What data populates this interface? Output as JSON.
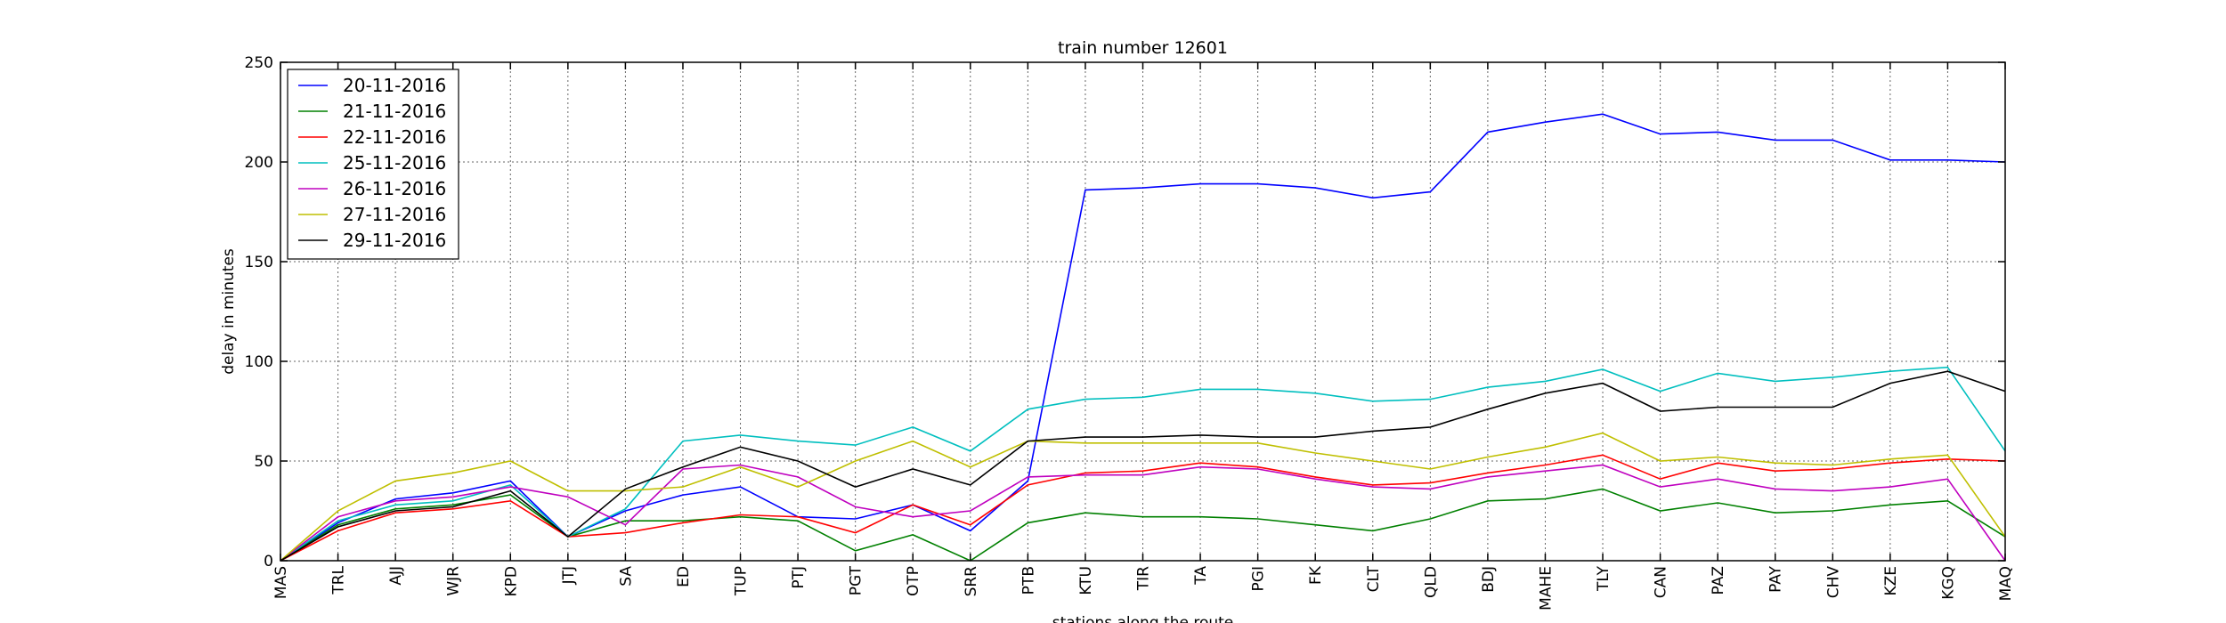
{
  "chart_data": {
    "type": "line",
    "title": "train number 12601",
    "xlabel": "stations along the route",
    "ylabel": "delay in minutes",
    "ylim": [
      0,
      250
    ],
    "yticks": [
      0,
      50,
      100,
      150,
      200,
      250
    ],
    "grid": true,
    "legend_position": "top-left",
    "categories": [
      "MAS",
      "TRL",
      "AJJ",
      "WJR",
      "KPD",
      "JTJ",
      "SA",
      "ED",
      "TUP",
      "PTJ",
      "PGT",
      "OTP",
      "SRR",
      "PTB",
      "KTU",
      "TIR",
      "TA",
      "PGI",
      "FK",
      "CLT",
      "QLD",
      "BDJ",
      "MAHE",
      "TLY",
      "CAN",
      "PAZ",
      "PAY",
      "CHV",
      "KZE",
      "KGQ",
      "MAQ"
    ],
    "series": [
      {
        "name": "20-11-2016",
        "color": "#0000ff",
        "values": [
          0,
          19,
          31,
          34,
          40,
          12,
          25,
          33,
          37,
          22,
          21,
          28,
          15,
          40,
          186,
          187,
          189,
          189,
          187,
          182,
          185,
          215,
          220,
          224,
          214,
          215,
          211,
          211,
          201,
          201,
          200
        ]
      },
      {
        "name": "21-11-2016",
        "color": "#008000",
        "values": [
          0,
          18,
          26,
          28,
          33,
          12,
          20,
          20,
          22,
          20,
          5,
          13,
          0,
          19,
          24,
          22,
          22,
          21,
          18,
          15,
          21,
          30,
          31,
          36,
          25,
          29,
          24,
          25,
          28,
          30,
          12
        ]
      },
      {
        "name": "22-11-2016",
        "color": "#ff0000",
        "values": [
          0,
          15,
          24,
          26,
          30,
          12,
          14,
          19,
          23,
          22,
          14,
          28,
          18,
          38,
          44,
          45,
          49,
          47,
          42,
          38,
          39,
          44,
          48,
          53,
          41,
          49,
          45,
          46,
          49,
          51,
          50
        ]
      },
      {
        "name": "25-11-2016",
        "color": "#00bfbf",
        "values": [
          0,
          20,
          28,
          30,
          38,
          12,
          26,
          60,
          63,
          60,
          58,
          67,
          55,
          76,
          81,
          82,
          86,
          86,
          84,
          80,
          81,
          87,
          90,
          96,
          85,
          94,
          90,
          92,
          95,
          97,
          55
        ]
      },
      {
        "name": "26-11-2016",
        "color": "#bf00bf",
        "values": [
          0,
          22,
          30,
          32,
          37,
          32,
          18,
          46,
          48,
          42,
          27,
          22,
          25,
          42,
          43,
          43,
          47,
          46,
          41,
          37,
          36,
          42,
          45,
          48,
          37,
          41,
          36,
          35,
          37,
          41,
          0
        ]
      },
      {
        "name": "27-11-2016",
        "color": "#bfbf00",
        "values": [
          0,
          25,
          40,
          44,
          50,
          35,
          35,
          37,
          47,
          37,
          50,
          60,
          47,
          60,
          59,
          59,
          59,
          59,
          54,
          50,
          46,
          52,
          57,
          64,
          50,
          52,
          49,
          48,
          51,
          53,
          12
        ]
      },
      {
        "name": "29-11-2016",
        "color": "#000000",
        "values": [
          0,
          17,
          25,
          27,
          35,
          12,
          36,
          47,
          57,
          50,
          37,
          46,
          38,
          60,
          62,
          62,
          63,
          62,
          62,
          65,
          67,
          76,
          84,
          89,
          75,
          77,
          77,
          77,
          89,
          95,
          85
        ]
      }
    ]
  }
}
